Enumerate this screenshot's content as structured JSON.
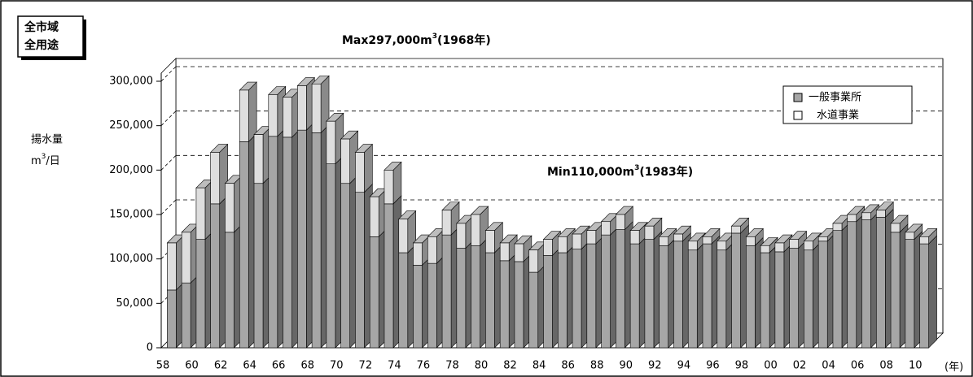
{
  "chart_data": {
    "type": "bar3d-stacked",
    "corner_label": [
      "全市域",
      "全用途"
    ],
    "annotations": [
      {
        "text": "Max297,000m",
        "sup": "3",
        "tail": "(1968年)"
      },
      {
        "text": "Min110,000m",
        "sup": "3",
        "tail": "(1983年)"
      }
    ],
    "ylabel": "揚水量",
    "yunit": {
      "text": "m",
      "sup": "3",
      "tail": "/日"
    },
    "xunit": "(年)",
    "categories": [
      "58",
      null,
      "60",
      null,
      "62",
      null,
      "64",
      null,
      "66",
      null,
      "68",
      null,
      "70",
      null,
      "72",
      null,
      "74",
      null,
      "76",
      null,
      "78",
      null,
      "80",
      null,
      "82",
      null,
      "84",
      null,
      "86",
      null,
      "88",
      null,
      "90",
      null,
      "92",
      null,
      "94",
      null,
      "96",
      null,
      "98",
      null,
      "00",
      null,
      "02",
      null,
      "04",
      null,
      "06",
      null,
      "08",
      null,
      "10"
    ],
    "series": [
      {
        "name": "一般事業所",
        "color": "#a6a6a6",
        "values": [
          65000,
          73000,
          122000,
          162000,
          130000,
          232000,
          185000,
          238000,
          237000,
          245000,
          242000,
          207000,
          185000,
          175000,
          125000,
          162000,
          107000,
          93000,
          95000,
          127000,
          112000,
          115000,
          107000,
          98000,
          97000,
          85000,
          104000,
          107000,
          111000,
          117000,
          127000,
          133000,
          117000,
          122000,
          115000,
          120000,
          110000,
          117000,
          110000,
          129000,
          115000,
          107000,
          108000,
          112000,
          110000,
          120000,
          132000,
          142000,
          144000,
          147000,
          130000,
          122000,
          117000
        ]
      },
      {
        "name": "水道事業",
        "color": "#dedede",
        "values": [
          53000,
          57000,
          58000,
          58000,
          55000,
          58000,
          55000,
          47000,
          45000,
          50000,
          55000,
          48000,
          50000,
          45000,
          45000,
          38000,
          38000,
          25000,
          30000,
          28000,
          28000,
          35000,
          25000,
          20000,
          20000,
          25000,
          18000,
          18000,
          17000,
          15000,
          15000,
          17000,
          15000,
          15000,
          10000,
          8000,
          10000,
          8000,
          10000,
          8000,
          10000,
          8000,
          10000,
          10000,
          10000,
          5000,
          8000,
          8000,
          8000,
          8000,
          10000,
          8000,
          8000
        ]
      }
    ],
    "ylim": [
      0,
      300000
    ],
    "yticks": [
      0,
      {
        "value": 50000,
        "label": "50,000"
      },
      {
        "value": 100000,
        "label": "100,000"
      },
      {
        "value": 150000,
        "label": "150,000"
      },
      {
        "value": 200000,
        "label": "200,000"
      },
      {
        "value": 250000,
        "label": "250,000"
      },
      {
        "value": 300000,
        "label": "300,000"
      }
    ],
    "grid": true,
    "legend": "top-right"
  }
}
